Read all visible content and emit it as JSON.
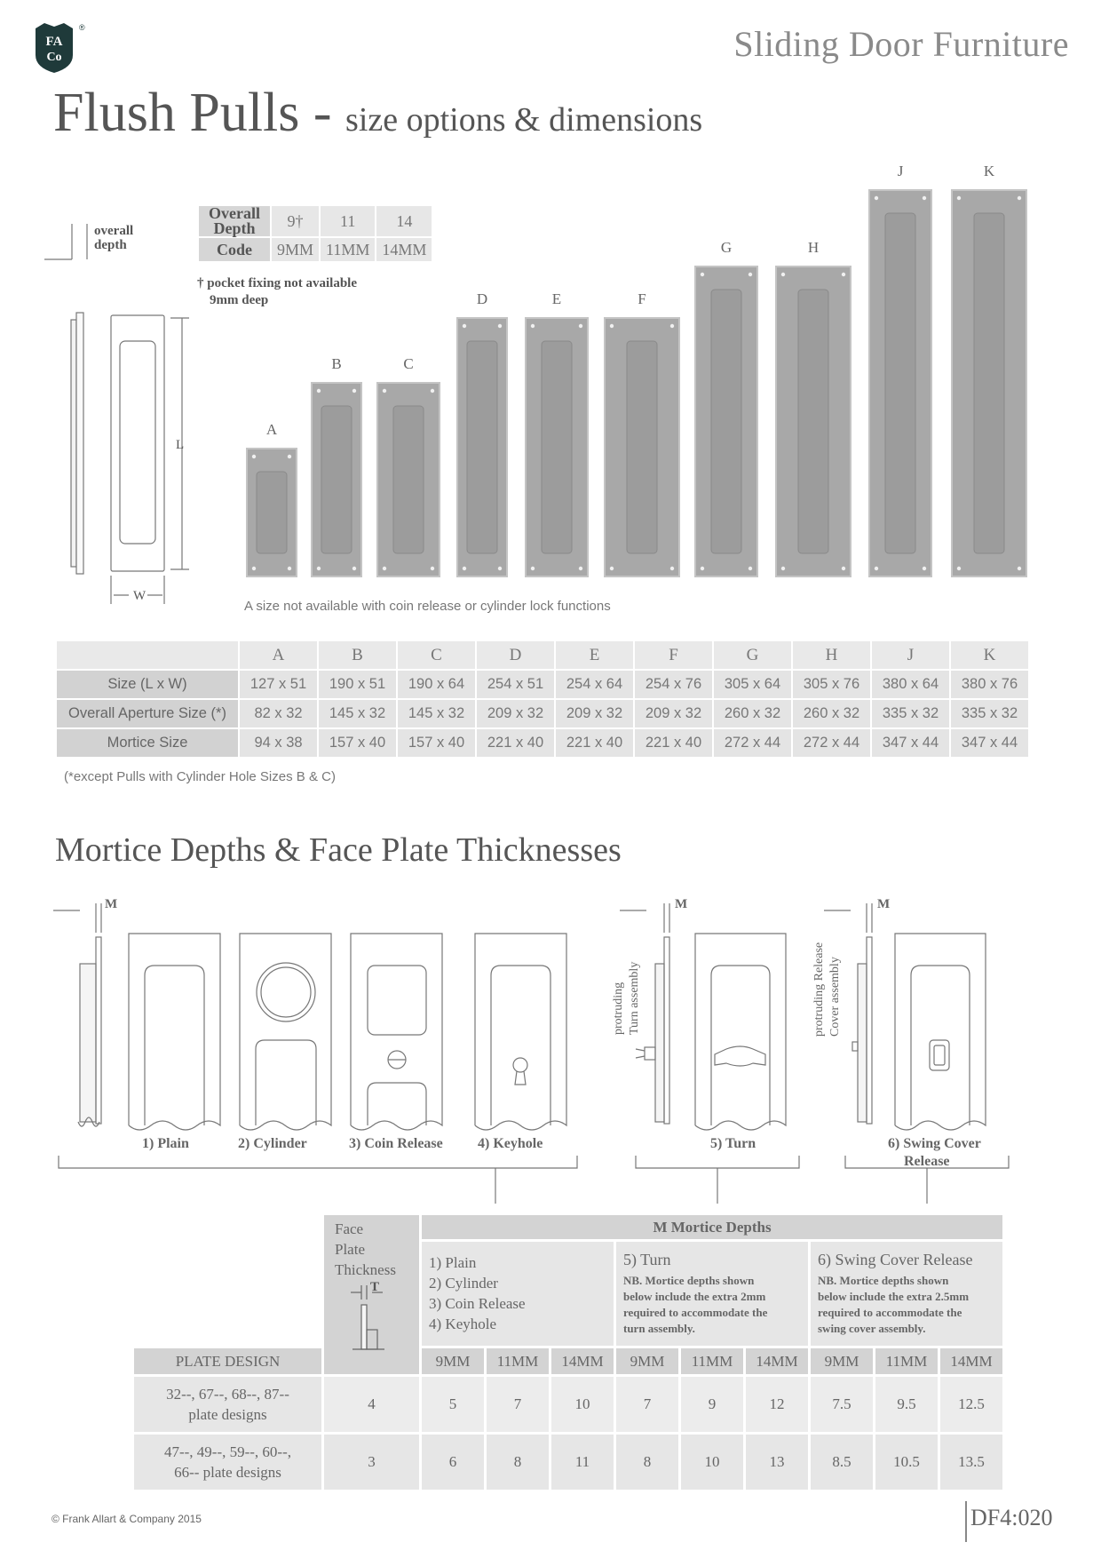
{
  "logo": {
    "line1": "FA",
    "line2": "Co",
    "registered": "®",
    "color": "#1f3a3a"
  },
  "header": {
    "title": "Sliding Door Furniture"
  },
  "page": {
    "title": "Flush Pulls -",
    "subtitle": "size options & dimensions"
  },
  "side_diagram": {
    "overall_depth": [
      "overall",
      "depth"
    ],
    "length": "L",
    "width": "W"
  },
  "depth_table": {
    "row1_label": [
      "Overall",
      "Depth"
    ],
    "row1": [
      "9†",
      "11",
      "14"
    ],
    "row2_label": "Code",
    "row2": [
      "9MM",
      "11MM",
      "14MM"
    ],
    "note": [
      "† pocket fixing not available",
      "9mm deep"
    ]
  },
  "pull_sizes": {
    "letters": [
      "A",
      "B",
      "C",
      "D",
      "E",
      "F",
      "G",
      "H",
      "J",
      "K"
    ],
    "note": "A size not available with coin release or cylinder lock functions"
  },
  "size_table": {
    "header": [
      "A",
      "B",
      "C",
      "D",
      "E",
      "F",
      "G",
      "H",
      "J",
      "K"
    ],
    "rows": [
      {
        "label": "Size (L x W)",
        "values": [
          "127 x 51",
          "190 x 51",
          "190 x 64",
          "254 x 51",
          "254 x 64",
          "254 x 76",
          "305 x 64",
          "305 x 76",
          "380 x 64",
          "380 x 76"
        ]
      },
      {
        "label": "Overall Aperture Size (*)",
        "values": [
          "82 x 32",
          "145 x 32",
          "145 x 32",
          "209 x 32",
          "209 x 32",
          "209 x 32",
          "260 x 32",
          "260 x 32",
          "335 x 32",
          "335 x 32"
        ]
      },
      {
        "label": "Mortice Size",
        "values": [
          "94 x 38",
          "157 x 40",
          "157 x 40",
          "221 x 40",
          "221 x 40",
          "221 x 40",
          "272 x 44",
          "272 x 44",
          "347 x 44",
          "347 x 44"
        ]
      }
    ],
    "note": "(*except Pulls with Cylinder Hole Sizes B & C)"
  },
  "section2": {
    "title": "Mortice Depths & Face Plate Thicknesses"
  },
  "mortice_diagrams": {
    "m_label": "M",
    "captions": [
      "1) Plain",
      "2) Cylinder",
      "3) Coin Release",
      "4) Keyhole",
      "5) Turn",
      "6) Swing Cover",
      "Release"
    ],
    "turn_label": [
      "protruding",
      "Turn assembly"
    ],
    "swing_label": [
      "protruding Release",
      "Cover assembly"
    ]
  },
  "depth_matrix": {
    "face_plate_label": [
      "Face",
      "Plate",
      "Thickness"
    ],
    "t_label": "T",
    "group_title": "M Mortice Depths",
    "group1": {
      "lines": [
        "1) Plain",
        "2) Cylinder",
        "3) Coin Release",
        "4) Keyhole"
      ]
    },
    "group2": {
      "title": "5) Turn",
      "note": [
        "NB. Mortice depths shown",
        "below include the extra 2mm",
        "required to accommodate the",
        "turn assembly."
      ]
    },
    "group3": {
      "title": "6) Swing Cover Release",
      "note": [
        "NB. Mortice depths shown",
        "below include the extra 2.5mm",
        "required to accommodate the",
        "swing cover assembly."
      ]
    },
    "plate_design_label": "PLATE DESIGN",
    "col_heads": [
      "9MM",
      "11MM",
      "14MM",
      "9MM",
      "11MM",
      "14MM",
      "9MM",
      "11MM",
      "14MM"
    ],
    "rows": [
      {
        "label": [
          "32--, 67--, 68--, 87--",
          "plate designs"
        ],
        "thickness": "4",
        "values": [
          "5",
          "7",
          "10",
          "7",
          "9",
          "12",
          "7.5",
          "9.5",
          "12.5"
        ]
      },
      {
        "label": [
          "47--, 49--, 59--, 60--,",
          "66-- plate designs"
        ],
        "thickness": "3",
        "values": [
          "6",
          "8",
          "11",
          "8",
          "10",
          "13",
          "8.5",
          "10.5",
          "13.5"
        ]
      }
    ]
  },
  "footer": {
    "copyright": "© Frank Allart & Company 2015",
    "page_code": "DF4:020"
  }
}
